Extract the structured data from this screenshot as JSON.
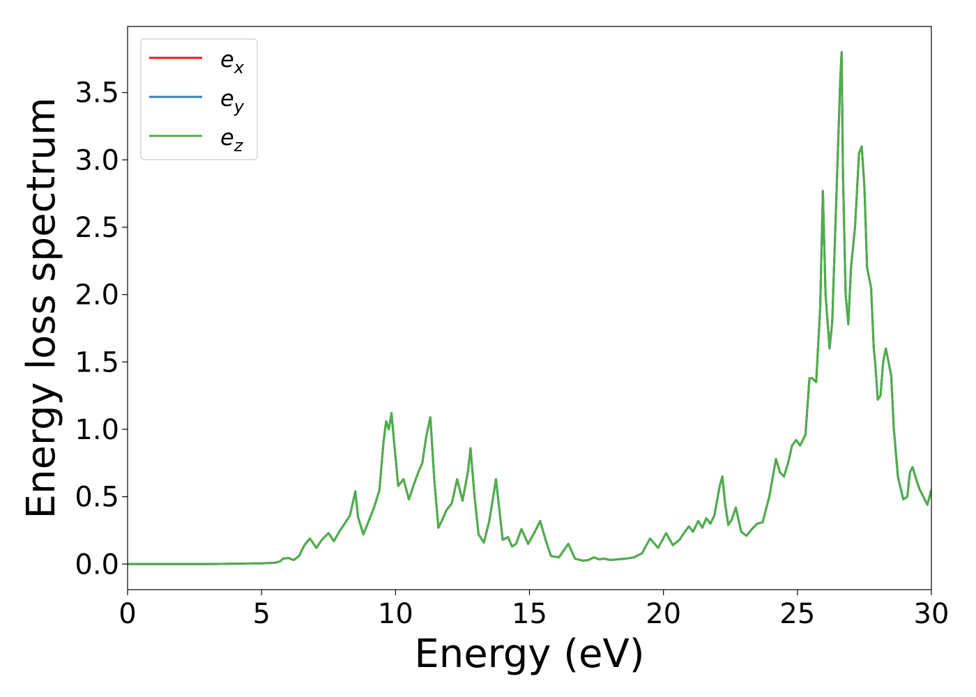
{
  "chart_data": {
    "type": "line",
    "title": "",
    "xlabel": "Energy (eV)",
    "ylabel": "Energy loss spectrum",
    "xlim": [
      0,
      30
    ],
    "ylim": [
      -0.19,
      3.99
    ],
    "xticks": [
      0,
      5,
      10,
      15,
      20,
      25,
      30
    ],
    "xtick_labels": [
      "0",
      "5",
      "10",
      "15",
      "20",
      "25",
      "30"
    ],
    "yticks": [
      0.0,
      0.5,
      1.0,
      1.5,
      2.0,
      2.5,
      3.0,
      3.5
    ],
    "ytick_labels": [
      "0.0",
      "0.5",
      "1.0",
      "1.5",
      "2.0",
      "2.5",
      "3.0",
      "3.5"
    ],
    "grid": false,
    "legend_position": "top-left",
    "series": [
      {
        "name": "e_x",
        "legend_base": "e",
        "legend_sub": "x",
        "color": "#e41a1c",
        "x": [
          0,
          3,
          5,
          5.5,
          5.7,
          5.8,
          6.0,
          6.2,
          6.4,
          6.6,
          6.8,
          7.05,
          7.25,
          7.5,
          7.7,
          7.9,
          8.1,
          8.3,
          8.5,
          8.6,
          8.8,
          9.0,
          9.2,
          9.4,
          9.55,
          9.65,
          9.75,
          9.85,
          9.95,
          10.1,
          10.3,
          10.5,
          10.7,
          10.85,
          11.0,
          11.15,
          11.3,
          11.45,
          11.6,
          11.75,
          11.9,
          12.1,
          12.3,
          12.5,
          12.7,
          12.8,
          12.95,
          13.1,
          13.3,
          13.5,
          13.75,
          14.0,
          14.2,
          14.35,
          14.5,
          14.7,
          14.95,
          15.2,
          15.4,
          15.6,
          15.8,
          16.1,
          16.45,
          16.7,
          17.0,
          17.2,
          17.4,
          17.6,
          17.8,
          18.0,
          18.3,
          18.6,
          18.9,
          19.2,
          19.5,
          19.8,
          20.1,
          20.35,
          20.6,
          20.8,
          20.95,
          21.1,
          21.3,
          21.45,
          21.6,
          21.75,
          21.9,
          22.1,
          22.2,
          22.3,
          22.42,
          22.55,
          22.7,
          22.9,
          23.1,
          23.3,
          23.5,
          23.7,
          23.95,
          24.2,
          24.35,
          24.5,
          24.65,
          24.8,
          24.95,
          25.1,
          25.3,
          25.45,
          25.55,
          25.7,
          25.85,
          25.95,
          26.05,
          26.2,
          26.3,
          26.4,
          26.5,
          26.6,
          26.65,
          26.7,
          26.8,
          26.9,
          27.0,
          27.15,
          27.3,
          27.4,
          27.5,
          27.6,
          27.75,
          27.85,
          27.9,
          28.0,
          28.1,
          28.2,
          28.3,
          28.4,
          28.5,
          28.6,
          28.75,
          28.95,
          29.1,
          29.2,
          29.3,
          29.4,
          29.55,
          29.7,
          29.85,
          30.0
        ],
        "y": [
          0.0,
          0.0,
          0.005,
          0.01,
          0.02,
          0.04,
          0.045,
          0.03,
          0.06,
          0.14,
          0.19,
          0.12,
          0.18,
          0.23,
          0.17,
          0.24,
          0.3,
          0.36,
          0.54,
          0.35,
          0.22,
          0.32,
          0.42,
          0.55,
          0.9,
          1.06,
          1.0,
          1.12,
          0.9,
          0.58,
          0.63,
          0.48,
          0.6,
          0.68,
          0.75,
          0.95,
          1.09,
          0.62,
          0.27,
          0.33,
          0.4,
          0.45,
          0.63,
          0.47,
          0.68,
          0.86,
          0.5,
          0.22,
          0.16,
          0.32,
          0.63,
          0.18,
          0.2,
          0.13,
          0.15,
          0.26,
          0.15,
          0.24,
          0.32,
          0.18,
          0.06,
          0.05,
          0.15,
          0.04,
          0.025,
          0.03,
          0.05,
          0.035,
          0.04,
          0.03,
          0.035,
          0.04,
          0.05,
          0.08,
          0.19,
          0.12,
          0.23,
          0.14,
          0.18,
          0.24,
          0.28,
          0.24,
          0.32,
          0.27,
          0.34,
          0.3,
          0.36,
          0.58,
          0.65,
          0.45,
          0.29,
          0.33,
          0.42,
          0.24,
          0.21,
          0.26,
          0.3,
          0.31,
          0.5,
          0.78,
          0.68,
          0.65,
          0.75,
          0.88,
          0.92,
          0.88,
          0.96,
          1.38,
          1.38,
          1.35,
          1.9,
          2.77,
          2.0,
          1.6,
          1.8,
          2.4,
          3.0,
          3.6,
          3.8,
          2.9,
          2.0,
          1.78,
          2.2,
          2.5,
          3.05,
          3.1,
          2.8,
          2.2,
          2.05,
          1.6,
          1.5,
          1.22,
          1.25,
          1.5,
          1.6,
          1.5,
          1.4,
          1.0,
          0.65,
          0.48,
          0.5,
          0.68,
          0.72,
          0.65,
          0.56,
          0.5,
          0.44,
          0.55
        ],
        "ylabel_repeat": ""
      },
      {
        "name": "e_y",
        "legend_base": "e",
        "legend_sub": "y",
        "color": "#377eb8",
        "x": [
          0,
          3,
          5,
          5.5,
          5.7,
          5.8,
          6.0,
          6.2,
          6.4,
          6.6,
          6.8,
          7.05,
          7.25,
          7.5,
          7.7,
          7.9,
          8.1,
          8.3,
          8.5,
          8.6,
          8.8,
          9.0,
          9.2,
          9.4,
          9.55,
          9.65,
          9.75,
          9.85,
          9.95,
          10.1,
          10.3,
          10.5,
          10.7,
          10.85,
          11.0,
          11.15,
          11.3,
          11.45,
          11.6,
          11.75,
          11.9,
          12.1,
          12.3,
          12.5,
          12.7,
          12.8,
          12.95,
          13.1,
          13.3,
          13.5,
          13.75,
          14.0,
          14.2,
          14.35,
          14.5,
          14.7,
          14.95,
          15.2,
          15.4,
          15.6,
          15.8,
          16.1,
          16.45,
          16.7,
          17.0,
          17.2,
          17.4,
          17.6,
          17.8,
          18.0,
          18.3,
          18.6,
          18.9,
          19.2,
          19.5,
          19.8,
          20.1,
          20.35,
          20.6,
          20.8,
          20.95,
          21.1,
          21.3,
          21.45,
          21.6,
          21.75,
          21.9,
          22.1,
          22.2,
          22.3,
          22.42,
          22.55,
          22.7,
          22.9,
          23.1,
          23.3,
          23.5,
          23.7,
          23.95,
          24.2,
          24.35,
          24.5,
          24.65,
          24.8,
          24.95,
          25.1,
          25.3,
          25.45,
          25.55,
          25.7,
          25.85,
          25.95,
          26.05,
          26.2,
          26.3,
          26.4,
          26.5,
          26.6,
          26.65,
          26.7,
          26.8,
          26.9,
          27.0,
          27.15,
          27.3,
          27.4,
          27.5,
          27.6,
          27.75,
          27.85,
          27.9,
          28.0,
          28.1,
          28.2,
          28.3,
          28.4,
          28.5,
          28.6,
          28.75,
          28.95,
          29.1,
          29.2,
          29.3,
          29.4,
          29.55,
          29.7,
          29.85,
          30.0
        ],
        "y": [
          0.0,
          0.0,
          0.005,
          0.01,
          0.02,
          0.04,
          0.045,
          0.03,
          0.06,
          0.14,
          0.19,
          0.12,
          0.18,
          0.23,
          0.17,
          0.24,
          0.3,
          0.36,
          0.54,
          0.35,
          0.22,
          0.32,
          0.42,
          0.55,
          0.9,
          1.06,
          1.0,
          1.12,
          0.9,
          0.58,
          0.63,
          0.48,
          0.6,
          0.68,
          0.75,
          0.95,
          1.09,
          0.62,
          0.27,
          0.33,
          0.4,
          0.45,
          0.63,
          0.47,
          0.68,
          0.86,
          0.5,
          0.22,
          0.16,
          0.32,
          0.63,
          0.18,
          0.2,
          0.13,
          0.15,
          0.26,
          0.15,
          0.24,
          0.32,
          0.18,
          0.06,
          0.05,
          0.15,
          0.04,
          0.025,
          0.03,
          0.05,
          0.035,
          0.04,
          0.03,
          0.035,
          0.04,
          0.05,
          0.08,
          0.19,
          0.12,
          0.23,
          0.14,
          0.18,
          0.24,
          0.28,
          0.24,
          0.32,
          0.27,
          0.34,
          0.3,
          0.36,
          0.58,
          0.65,
          0.45,
          0.29,
          0.33,
          0.42,
          0.24,
          0.21,
          0.26,
          0.3,
          0.31,
          0.5,
          0.78,
          0.68,
          0.65,
          0.75,
          0.88,
          0.92,
          0.88,
          0.96,
          1.38,
          1.38,
          1.35,
          1.9,
          2.77,
          2.0,
          1.6,
          1.8,
          2.4,
          3.0,
          3.6,
          3.8,
          2.9,
          2.0,
          1.78,
          2.2,
          2.5,
          3.05,
          3.1,
          2.8,
          2.2,
          2.05,
          1.6,
          1.5,
          1.22,
          1.25,
          1.5,
          1.6,
          1.5,
          1.4,
          1.0,
          0.65,
          0.48,
          0.5,
          0.68,
          0.72,
          0.65,
          0.56,
          0.5,
          0.44,
          0.55
        ]
      },
      {
        "name": "e_z",
        "legend_base": "e",
        "legend_sub": "z",
        "color": "#4daf4a",
        "x": [
          0,
          3,
          5,
          5.5,
          5.7,
          5.8,
          6.0,
          6.2,
          6.4,
          6.6,
          6.8,
          7.05,
          7.25,
          7.5,
          7.7,
          7.9,
          8.1,
          8.3,
          8.5,
          8.6,
          8.8,
          9.0,
          9.2,
          9.4,
          9.55,
          9.65,
          9.75,
          9.85,
          9.95,
          10.1,
          10.3,
          10.5,
          10.7,
          10.85,
          11.0,
          11.15,
          11.3,
          11.45,
          11.6,
          11.75,
          11.9,
          12.1,
          12.3,
          12.5,
          12.7,
          12.8,
          12.95,
          13.1,
          13.3,
          13.5,
          13.75,
          14.0,
          14.2,
          14.35,
          14.5,
          14.7,
          14.95,
          15.2,
          15.4,
          15.6,
          15.8,
          16.1,
          16.45,
          16.7,
          17.0,
          17.2,
          17.4,
          17.6,
          17.8,
          18.0,
          18.3,
          18.6,
          18.9,
          19.2,
          19.5,
          19.8,
          20.1,
          20.35,
          20.6,
          20.8,
          20.95,
          21.1,
          21.3,
          21.45,
          21.6,
          21.75,
          21.9,
          22.1,
          22.2,
          22.3,
          22.42,
          22.55,
          22.7,
          22.9,
          23.1,
          23.3,
          23.5,
          23.7,
          23.95,
          24.2,
          24.35,
          24.5,
          24.65,
          24.8,
          24.95,
          25.1,
          25.3,
          25.45,
          25.55,
          25.7,
          25.85,
          25.95,
          26.05,
          26.2,
          26.3,
          26.4,
          26.5,
          26.6,
          26.65,
          26.7,
          26.8,
          26.9,
          27.0,
          27.15,
          27.3,
          27.4,
          27.5,
          27.6,
          27.75,
          27.85,
          27.9,
          28.0,
          28.1,
          28.2,
          28.3,
          28.4,
          28.5,
          28.6,
          28.75,
          28.95,
          29.1,
          29.2,
          29.3,
          29.4,
          29.55,
          29.7,
          29.85,
          30.0
        ],
        "y": [
          0.0,
          0.0,
          0.005,
          0.01,
          0.02,
          0.04,
          0.045,
          0.03,
          0.06,
          0.14,
          0.19,
          0.12,
          0.18,
          0.23,
          0.17,
          0.24,
          0.3,
          0.36,
          0.54,
          0.35,
          0.22,
          0.32,
          0.42,
          0.55,
          0.9,
          1.06,
          1.0,
          1.12,
          0.9,
          0.58,
          0.63,
          0.48,
          0.6,
          0.68,
          0.75,
          0.95,
          1.09,
          0.62,
          0.27,
          0.33,
          0.4,
          0.45,
          0.63,
          0.47,
          0.68,
          0.86,
          0.5,
          0.22,
          0.16,
          0.32,
          0.63,
          0.18,
          0.2,
          0.13,
          0.15,
          0.26,
          0.15,
          0.24,
          0.32,
          0.18,
          0.06,
          0.05,
          0.15,
          0.04,
          0.025,
          0.03,
          0.05,
          0.035,
          0.04,
          0.03,
          0.035,
          0.04,
          0.05,
          0.08,
          0.19,
          0.12,
          0.23,
          0.14,
          0.18,
          0.24,
          0.28,
          0.24,
          0.32,
          0.27,
          0.34,
          0.3,
          0.36,
          0.58,
          0.65,
          0.45,
          0.29,
          0.33,
          0.42,
          0.24,
          0.21,
          0.26,
          0.3,
          0.31,
          0.5,
          0.78,
          0.68,
          0.65,
          0.75,
          0.88,
          0.92,
          0.88,
          0.96,
          1.38,
          1.38,
          1.35,
          1.9,
          2.77,
          2.0,
          1.6,
          1.8,
          2.4,
          3.0,
          3.6,
          3.8,
          2.9,
          2.0,
          1.78,
          2.2,
          2.5,
          3.05,
          3.1,
          2.8,
          2.2,
          2.05,
          1.6,
          1.5,
          1.22,
          1.25,
          1.5,
          1.6,
          1.5,
          1.4,
          1.0,
          0.65,
          0.48,
          0.5,
          0.68,
          0.72,
          0.65,
          0.56,
          0.5,
          0.44,
          0.55
        ]
      }
    ]
  }
}
